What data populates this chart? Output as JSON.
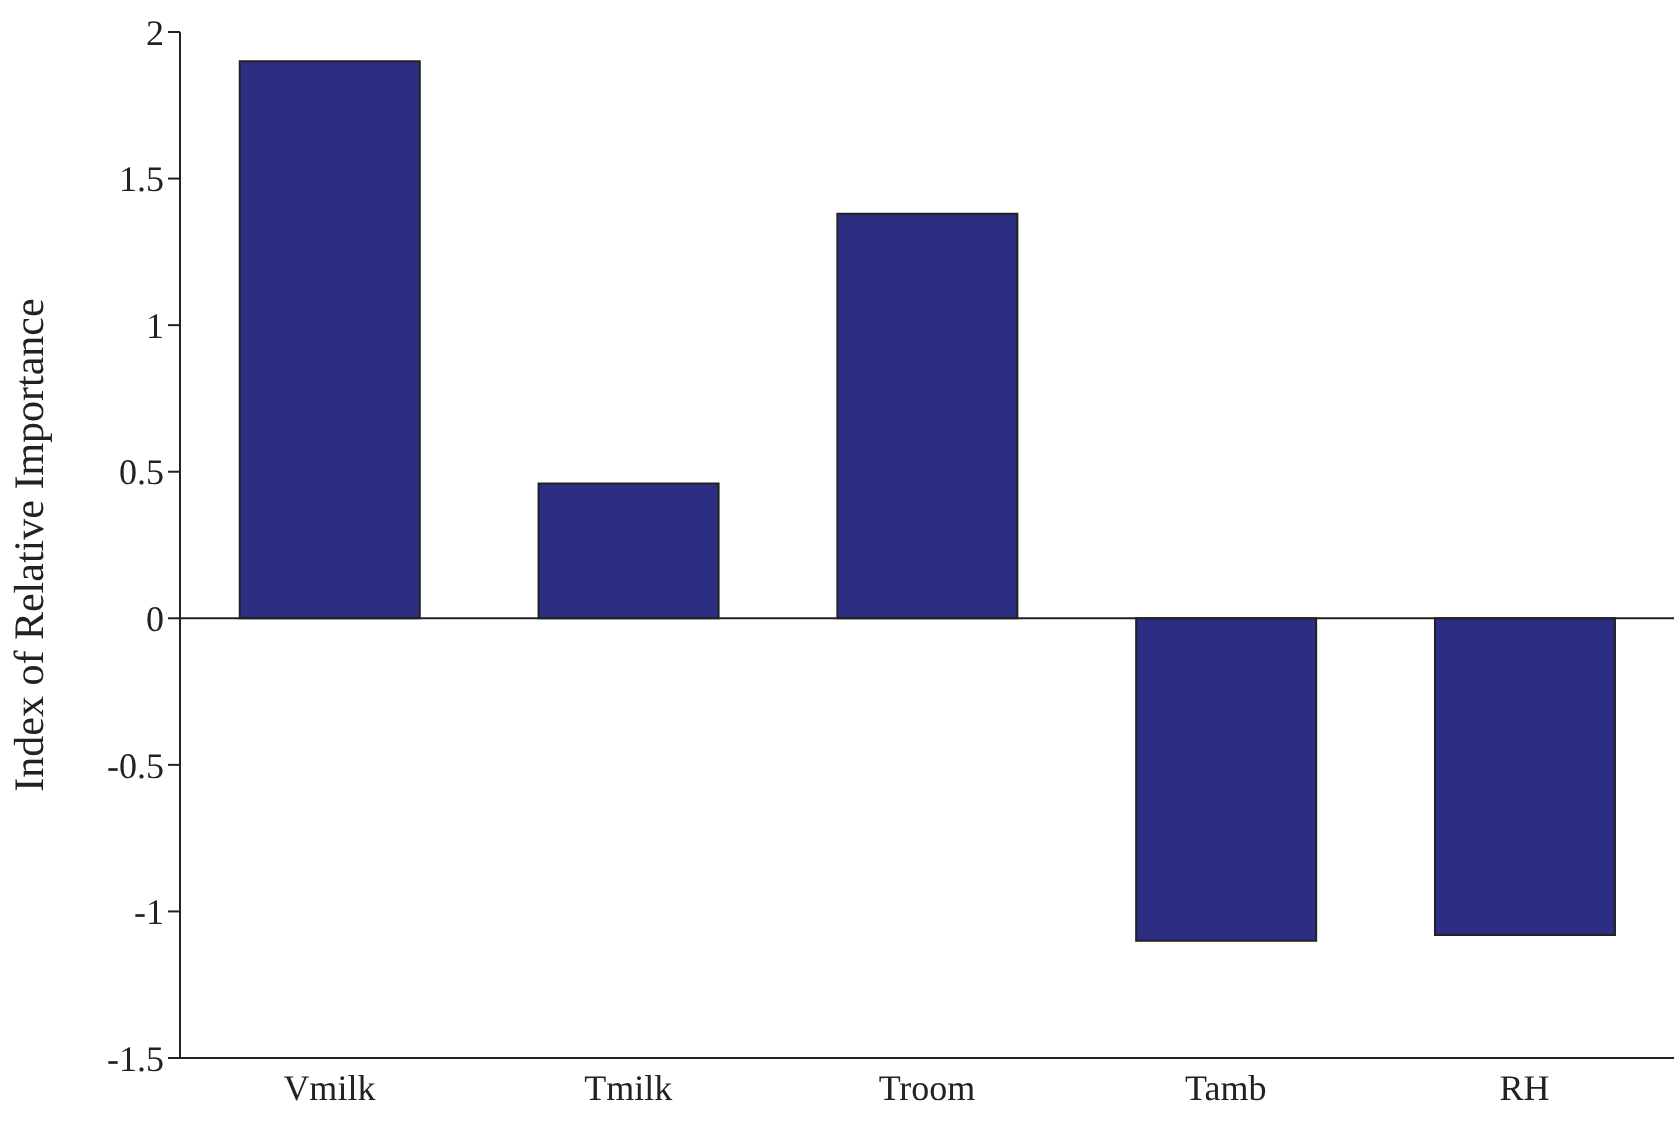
{
  "chart_data": {
    "type": "bar",
    "ylabel": "Index of Relative Importance",
    "categories": [
      "Vmilk",
      "Tmilk",
      "Troom",
      "Tamb",
      "RH"
    ],
    "values": [
      1.9,
      0.46,
      1.38,
      -1.1,
      -1.08
    ],
    "color": "#2b2e83",
    "ylim": [
      -1.5,
      2
    ],
    "yticks": [
      -1.5,
      -1,
      -0.5,
      0,
      0.5,
      1,
      1.5,
      2
    ]
  }
}
